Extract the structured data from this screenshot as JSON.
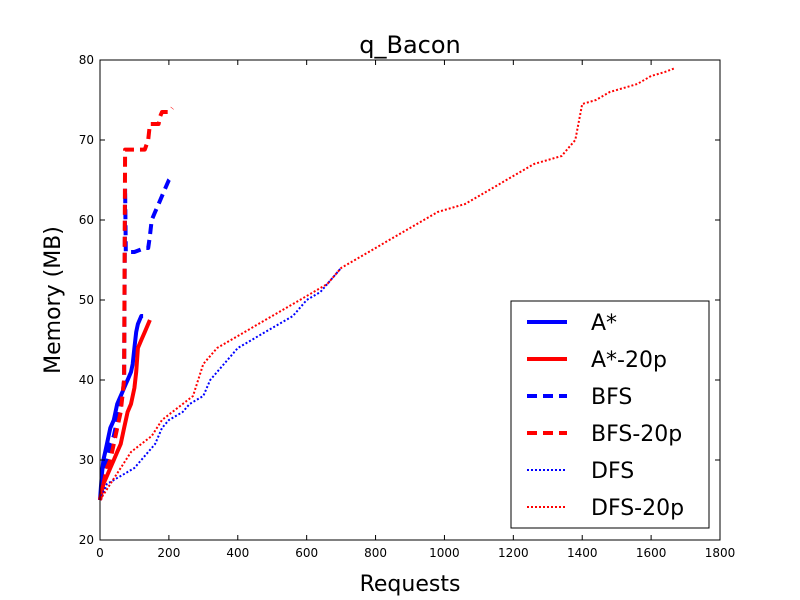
{
  "chart_data": {
    "type": "line",
    "title": "q_Bacon",
    "xlabel": "Requests",
    "ylabel": "Memory (MB)",
    "xlim": [
      0,
      1800
    ],
    "ylim": [
      20,
      80
    ],
    "xticks": [
      "0",
      "200",
      "400",
      "600",
      "800",
      "1000",
      "1200",
      "1400",
      "1600",
      "1800"
    ],
    "yticks": [
      "20",
      "30",
      "40",
      "50",
      "60",
      "70",
      "80"
    ],
    "grid": false,
    "legend_position": "lower-right",
    "series": [
      {
        "name": "A*",
        "color": "#0000ff",
        "style": "solid",
        "x": [
          0,
          5,
          10,
          15,
          20,
          25,
          30,
          35,
          40,
          45,
          50,
          55,
          60,
          65,
          70,
          75,
          80,
          85,
          90,
          95,
          100,
          105,
          110,
          115,
          120,
          125
        ],
        "y": [
          25,
          28,
          30,
          31,
          32,
          33,
          34,
          34.5,
          35,
          36,
          37,
          37.5,
          38,
          38.5,
          39,
          39.5,
          40,
          40.5,
          41,
          42,
          44,
          46,
          47,
          47.5,
          48,
          48
        ]
      },
      {
        "name": "A*-20p",
        "color": "#ff0000",
        "style": "solid",
        "x": [
          0,
          10,
          20,
          30,
          40,
          50,
          60,
          70,
          80,
          90,
          100,
          105,
          110,
          120,
          130,
          140,
          145
        ],
        "y": [
          25,
          27,
          28,
          29,
          30,
          31,
          32,
          34,
          36,
          37,
          39,
          41,
          44,
          45,
          46,
          47,
          47.5
        ]
      },
      {
        "name": "BFS",
        "color": "#0000ff",
        "style": "dashed",
        "x": [
          0,
          10,
          20,
          30,
          40,
          50,
          60,
          65,
          70,
          72,
          73,
          75,
          100,
          130,
          140,
          145,
          150,
          160,
          170,
          180,
          190,
          200,
          210
        ],
        "y": [
          25,
          28,
          30,
          32,
          33,
          35,
          37,
          38,
          40,
          56,
          64,
          56,
          56,
          56.5,
          56.5,
          58,
          60,
          61,
          62,
          63,
          64,
          65,
          65.5
        ]
      },
      {
        "name": "BFS-20p",
        "color": "#ff0000",
        "style": "dashed",
        "x": [
          0,
          10,
          20,
          30,
          40,
          50,
          60,
          65,
          70,
          72,
          73,
          75,
          100,
          130,
          140,
          145,
          150,
          170,
          175,
          180,
          200,
          210
        ],
        "y": [
          25,
          27,
          29,
          30,
          32,
          34,
          36,
          38,
          40,
          60,
          68.8,
          68.8,
          68.8,
          68.8,
          70,
          72,
          72,
          72,
          73,
          73.5,
          73.5,
          74
        ]
      },
      {
        "name": "DFS",
        "color": "#0000ff",
        "style": "dotted",
        "x": [
          0,
          20,
          40,
          60,
          80,
          100,
          120,
          140,
          160,
          180,
          200,
          220,
          240,
          260,
          280,
          300,
          320,
          340,
          360,
          380,
          400,
          440,
          480,
          520,
          560,
          600,
          640,
          660,
          680,
          700
        ],
        "y": [
          25,
          27,
          27.5,
          28,
          28.5,
          29,
          30,
          31,
          32,
          34,
          35,
          35.5,
          36,
          37,
          37.5,
          38,
          40,
          41,
          42,
          43,
          44,
          45,
          46,
          47,
          48,
          50,
          51,
          52,
          53,
          54
        ]
      },
      {
        "name": "DFS-20p",
        "color": "#ff0000",
        "style": "dotted",
        "x": [
          0,
          30,
          60,
          90,
          120,
          150,
          180,
          210,
          240,
          270,
          300,
          340,
          380,
          420,
          460,
          500,
          540,
          580,
          620,
          660,
          700,
          740,
          780,
          820,
          860,
          900,
          940,
          980,
          1020,
          1060,
          1100,
          1140,
          1180,
          1220,
          1260,
          1300,
          1340,
          1360,
          1380,
          1400,
          1440,
          1480,
          1520,
          1560,
          1600,
          1640,
          1670
        ],
        "y": [
          25,
          27,
          29,
          31,
          32,
          33,
          35,
          36,
          37,
          38,
          42,
          44,
          45,
          46,
          47,
          48,
          49,
          50,
          51,
          52,
          54,
          55,
          56,
          57,
          58,
          59,
          60,
          61,
          61.5,
          62,
          63,
          64,
          65,
          66,
          67,
          67.5,
          68,
          69,
          70,
          74.5,
          75,
          76,
          76.5,
          77,
          78,
          78.5,
          79
        ]
      }
    ]
  }
}
